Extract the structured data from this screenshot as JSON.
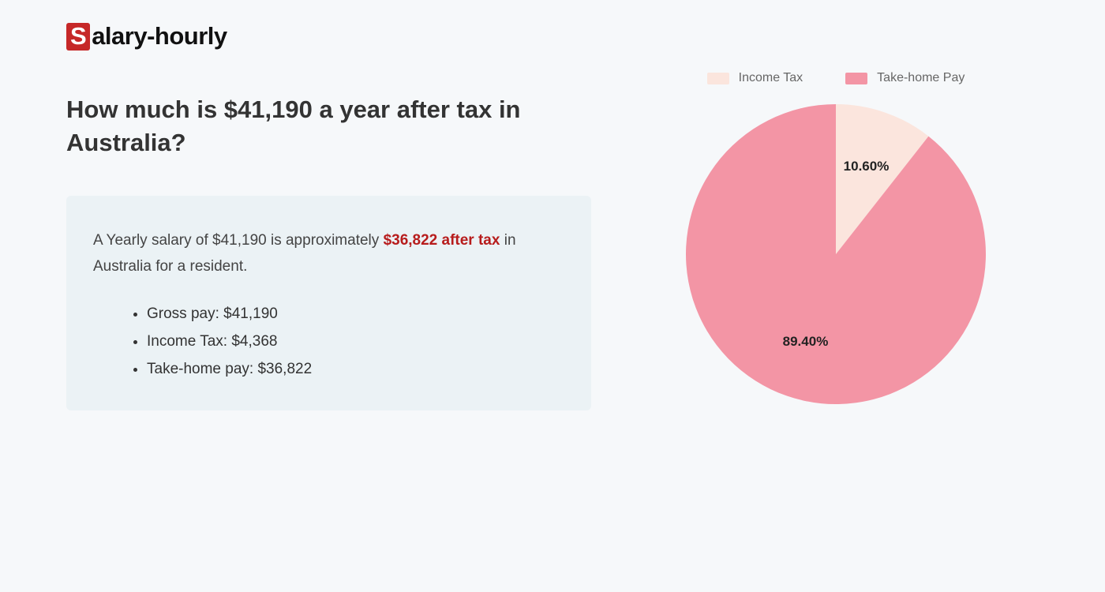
{
  "logo": {
    "badge_letter": "S",
    "rest": "alary-hourly"
  },
  "heading": "How much is $41,190 a year after tax in Australia?",
  "summary": {
    "prefix": "A Yearly salary of $41,190 is approximately ",
    "highlight": "$36,822 after tax",
    "suffix": " in Australia for a resident."
  },
  "bullets": [
    "Gross pay: $41,190",
    "Income Tax: $4,368",
    "Take-home pay: $36,822"
  ],
  "chart": {
    "type": "pie",
    "radius": 190,
    "background_color": "#f6f8fa",
    "slices": [
      {
        "label": "Income Tax",
        "percent": 10.6,
        "display": "10.60%",
        "color": "#fbe5dd"
      },
      {
        "label": "Take-home Pay",
        "percent": 89.4,
        "display": "89.40%",
        "color": "#f395a5"
      }
    ],
    "legend_fontsize": 16,
    "legend_text_color": "#666666",
    "label_fontsize": 17,
    "label_color": "#222222",
    "start_angle_deg": -90
  },
  "colors": {
    "page_bg": "#f6f8fa",
    "summary_bg": "#ebf2f5",
    "logo_badge_bg": "#c62828",
    "highlight_text": "#b71c1c",
    "heading_text": "#333333"
  }
}
